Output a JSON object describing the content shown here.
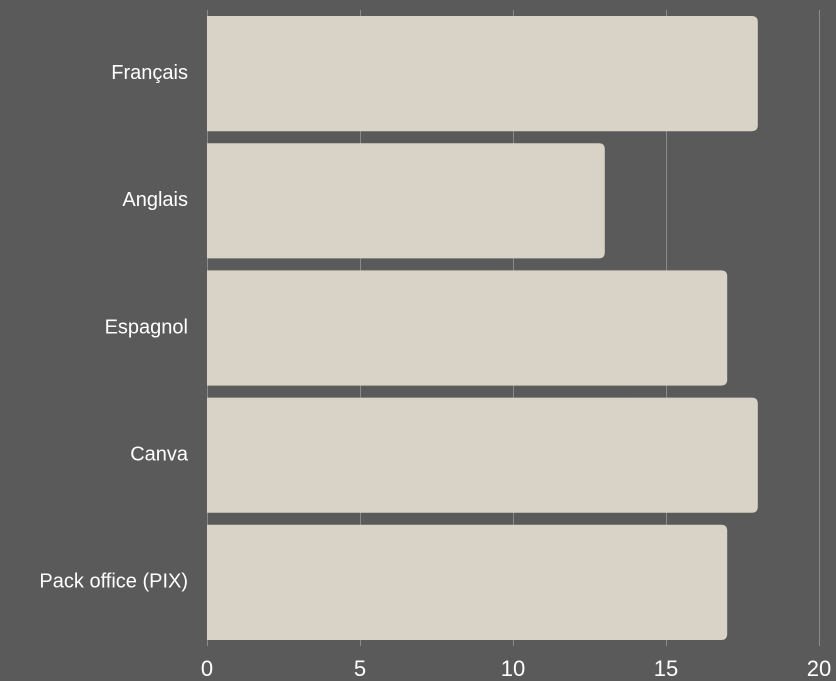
{
  "colors": {
    "background": "#5a5a5a",
    "bar": "#d8d2c7",
    "grid": "#8a8a8a",
    "text": "#ffffff"
  },
  "chart_data": {
    "type": "bar",
    "orientation": "horizontal",
    "categories": [
      "Français",
      "Anglais",
      "Espagnol",
      "Canva",
      "Pack office (PIX)"
    ],
    "values": [
      18,
      13,
      17,
      18,
      17
    ],
    "xlim": [
      0,
      20
    ],
    "xticks": [
      0,
      5,
      10,
      15,
      20
    ],
    "title": "",
    "xlabel": "",
    "ylabel": "",
    "grid": "vertical",
    "legend": "none"
  }
}
